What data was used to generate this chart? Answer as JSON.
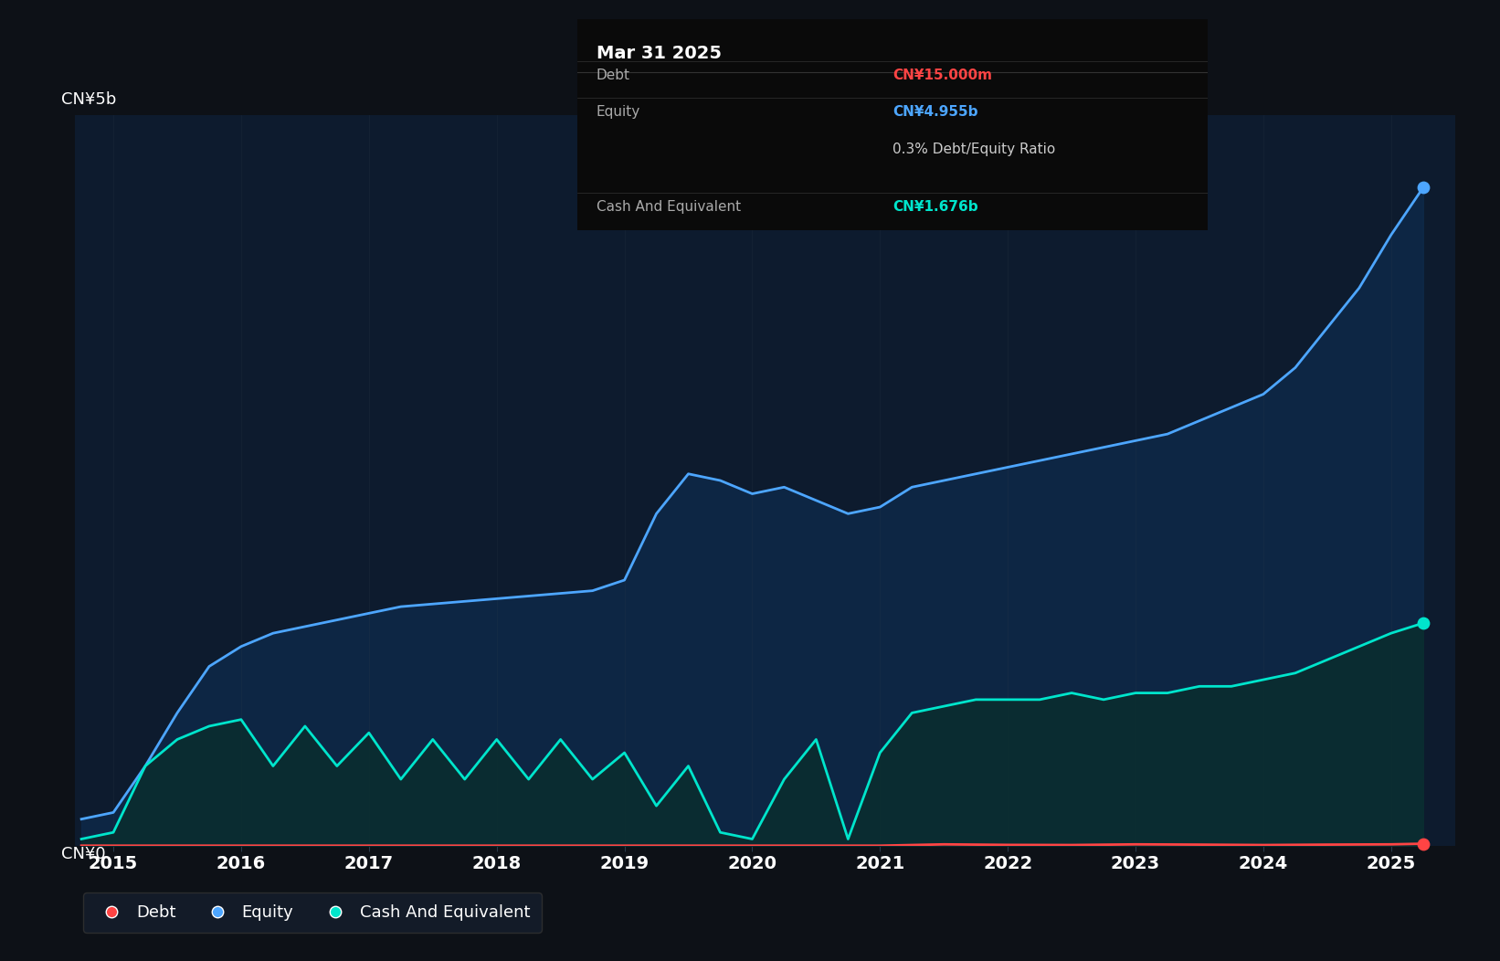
{
  "bg_color": "#0d1117",
  "plot_bg_color": "#0d1b2e",
  "grid_color": "#2a3a4a",
  "title_text": "Mar 31 2025",
  "tooltip_items": [
    {
      "label": "Debt",
      "value": "CN¥15.000m",
      "color": "#ff4444"
    },
    {
      "label": "Equity",
      "value": "CN¥4.955b",
      "color": "#4da6ff"
    },
    {
      "label": "",
      "value": "0.3% Debt/Equity Ratio",
      "color": "#cccccc"
    },
    {
      "label": "Cash And Equivalent",
      "value": "CN¥1.676b",
      "color": "#00e5cc"
    }
  ],
  "ylabel_0": "CN¥5b",
  "ylabel_1": "CN¥0",
  "xlabel_labels": [
    "2015",
    "2016",
    "2017",
    "2018",
    "2019",
    "2020",
    "2021",
    "2022",
    "2023",
    "2024",
    "2025"
  ],
  "legend_items": [
    {
      "label": "Debt",
      "color": "#ff4444"
    },
    {
      "label": "Equity",
      "color": "#4da6ff"
    },
    {
      "label": "Cash And Equivalent",
      "color": "#00e5cc"
    }
  ],
  "equity_color": "#4da6ff",
  "cash_color": "#00e5cc",
  "debt_color": "#ff4444",
  "equity_fill": "#1a3a5c",
  "cash_fill": "#0d3a3a",
  "ylim": [
    0,
    5500000000
  ],
  "xlim_start": 2014.7,
  "xlim_end": 2025.5
}
